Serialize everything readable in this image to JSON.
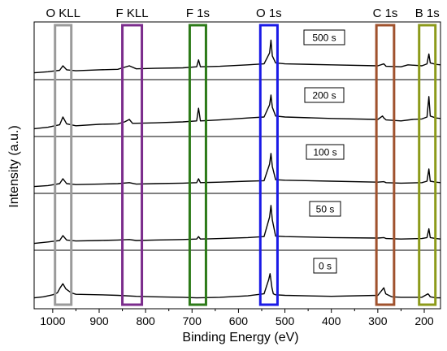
{
  "chart_data": {
    "type": "line",
    "xlabel": "Binding Energy (eV)",
    "ylabel": "Intensity (a.u.)",
    "xlim": [
      1040,
      165
    ],
    "x_reversed": true,
    "x_ticks": [
      1000,
      900,
      800,
      700,
      600,
      500,
      400,
      300,
      200
    ],
    "grid": false,
    "legend": "none",
    "regions": [
      {
        "label": "O KLL",
        "x_range": [
          995,
          960
        ],
        "color": "#9a9a9a"
      },
      {
        "label": "F KLL",
        "x_range": [
          850,
          808
        ],
        "color": "#7b2c8c"
      },
      {
        "label": "F 1s",
        "x_range": [
          705,
          670
        ],
        "color": "#2c7a18"
      },
      {
        "label": "O 1s",
        "x_range": [
          553,
          516
        ],
        "color": "#1a1ae6"
      },
      {
        "label": "C 1s",
        "x_range": [
          303,
          265
        ],
        "color": "#a0522d"
      },
      {
        "label": "B 1s",
        "x_range": [
          211,
          176
        ],
        "color": "#8c9a1a"
      }
    ],
    "series": [
      {
        "name": "500 s",
        "points": [
          [
            1040,
            4
          ],
          [
            1010,
            6
          ],
          [
            985,
            9
          ],
          [
            978,
            18
          ],
          [
            970,
            10
          ],
          [
            950,
            8
          ],
          [
            900,
            10
          ],
          [
            860,
            11
          ],
          [
            835,
            18
          ],
          [
            820,
            12
          ],
          [
            780,
            13
          ],
          [
            720,
            14
          ],
          [
            690,
            16
          ],
          [
            686,
            30
          ],
          [
            682,
            16
          ],
          [
            640,
            17
          ],
          [
            580,
            20
          ],
          [
            545,
            22
          ],
          [
            533,
            44
          ],
          [
            530,
            70
          ],
          [
            527,
            38
          ],
          [
            520,
            24
          ],
          [
            500,
            22
          ],
          [
            400,
            20
          ],
          [
            300,
            18
          ],
          [
            287,
            22
          ],
          [
            282,
            17
          ],
          [
            250,
            16
          ],
          [
            235,
            20
          ],
          [
            205,
            18
          ],
          [
            194,
            22
          ],
          [
            190,
            42
          ],
          [
            187,
            24
          ],
          [
            175,
            21
          ],
          [
            165,
            20
          ]
        ]
      },
      {
        "name": "200 s",
        "points": [
          [
            1040,
            6
          ],
          [
            1010,
            9
          ],
          [
            985,
            14
          ],
          [
            978,
            30
          ],
          [
            970,
            16
          ],
          [
            950,
            12
          ],
          [
            900,
            15
          ],
          [
            860,
            16
          ],
          [
            845,
            20
          ],
          [
            835,
            25
          ],
          [
            828,
            17
          ],
          [
            780,
            18
          ],
          [
            720,
            20
          ],
          [
            690,
            22
          ],
          [
            686,
            48
          ],
          [
            682,
            22
          ],
          [
            640,
            24
          ],
          [
            580,
            28
          ],
          [
            545,
            30
          ],
          [
            533,
            55
          ],
          [
            530,
            75
          ],
          [
            527,
            50
          ],
          [
            520,
            32
          ],
          [
            500,
            30
          ],
          [
            400,
            27
          ],
          [
            300,
            25
          ],
          [
            290,
            32
          ],
          [
            287,
            28
          ],
          [
            282,
            24
          ],
          [
            250,
            22
          ],
          [
            225,
            25
          ],
          [
            205,
            26
          ],
          [
            194,
            30
          ],
          [
            190,
            72
          ],
          [
            187,
            32
          ],
          [
            175,
            28
          ],
          [
            165,
            27
          ]
        ]
      },
      {
        "name": "100 s",
        "points": [
          [
            1040,
            4
          ],
          [
            1010,
            6
          ],
          [
            985,
            10
          ],
          [
            978,
            20
          ],
          [
            970,
            10
          ],
          [
            950,
            8
          ],
          [
            900,
            9
          ],
          [
            860,
            10
          ],
          [
            835,
            12
          ],
          [
            820,
            9
          ],
          [
            780,
            10
          ],
          [
            720,
            11
          ],
          [
            690,
            12
          ],
          [
            686,
            20
          ],
          [
            682,
            12
          ],
          [
            640,
            13
          ],
          [
            580,
            15
          ],
          [
            545,
            16
          ],
          [
            533,
            50
          ],
          [
            530,
            72
          ],
          [
            527,
            45
          ],
          [
            520,
            18
          ],
          [
            500,
            17
          ],
          [
            400,
            15
          ],
          [
            300,
            13
          ],
          [
            287,
            14
          ],
          [
            282,
            12
          ],
          [
            250,
            11
          ],
          [
            205,
            12
          ],
          [
            194,
            15
          ],
          [
            190,
            40
          ],
          [
            187,
            15
          ],
          [
            175,
            13
          ],
          [
            165,
            12
          ]
        ]
      },
      {
        "name": "50 s",
        "points": [
          [
            1040,
            4
          ],
          [
            1010,
            7
          ],
          [
            985,
            10
          ],
          [
            978,
            20
          ],
          [
            970,
            11
          ],
          [
            950,
            9
          ],
          [
            900,
            10
          ],
          [
            860,
            11
          ],
          [
            835,
            12
          ],
          [
            820,
            10
          ],
          [
            780,
            11
          ],
          [
            720,
            12
          ],
          [
            690,
            13
          ],
          [
            686,
            18
          ],
          [
            682,
            13
          ],
          [
            640,
            14
          ],
          [
            580,
            16
          ],
          [
            545,
            18
          ],
          [
            533,
            58
          ],
          [
            530,
            82
          ],
          [
            527,
            52
          ],
          [
            520,
            19
          ],
          [
            500,
            18
          ],
          [
            400,
            16
          ],
          [
            300,
            15
          ],
          [
            287,
            16
          ],
          [
            282,
            14
          ],
          [
            250,
            13
          ],
          [
            205,
            14
          ],
          [
            194,
            16
          ],
          [
            190,
            34
          ],
          [
            187,
            16
          ],
          [
            175,
            14
          ],
          [
            165,
            13
          ]
        ]
      },
      {
        "name": "0 s",
        "points": [
          [
            1040,
            12
          ],
          [
            1020,
            14
          ],
          [
            1000,
            18
          ],
          [
            990,
            22
          ],
          [
            984,
            32
          ],
          [
            978,
            40
          ],
          [
            972,
            30
          ],
          [
            960,
            22
          ],
          [
            950,
            19
          ],
          [
            900,
            18
          ],
          [
            860,
            17
          ],
          [
            820,
            15
          ],
          [
            780,
            14
          ],
          [
            720,
            13
          ],
          [
            690,
            12
          ],
          [
            640,
            13
          ],
          [
            580,
            16
          ],
          [
            545,
            20
          ],
          [
            535,
            48
          ],
          [
            532,
            60
          ],
          [
            528,
            32
          ],
          [
            525,
            20
          ],
          [
            520,
            18
          ],
          [
            500,
            17
          ],
          [
            400,
            15
          ],
          [
            300,
            17
          ],
          [
            287,
            32
          ],
          [
            283,
            20
          ],
          [
            270,
            14
          ],
          [
            250,
            13
          ],
          [
            205,
            13
          ],
          [
            192,
            20
          ],
          [
            190,
            18
          ],
          [
            187,
            14
          ],
          [
            175,
            12
          ],
          [
            165,
            12
          ]
        ]
      }
    ]
  }
}
